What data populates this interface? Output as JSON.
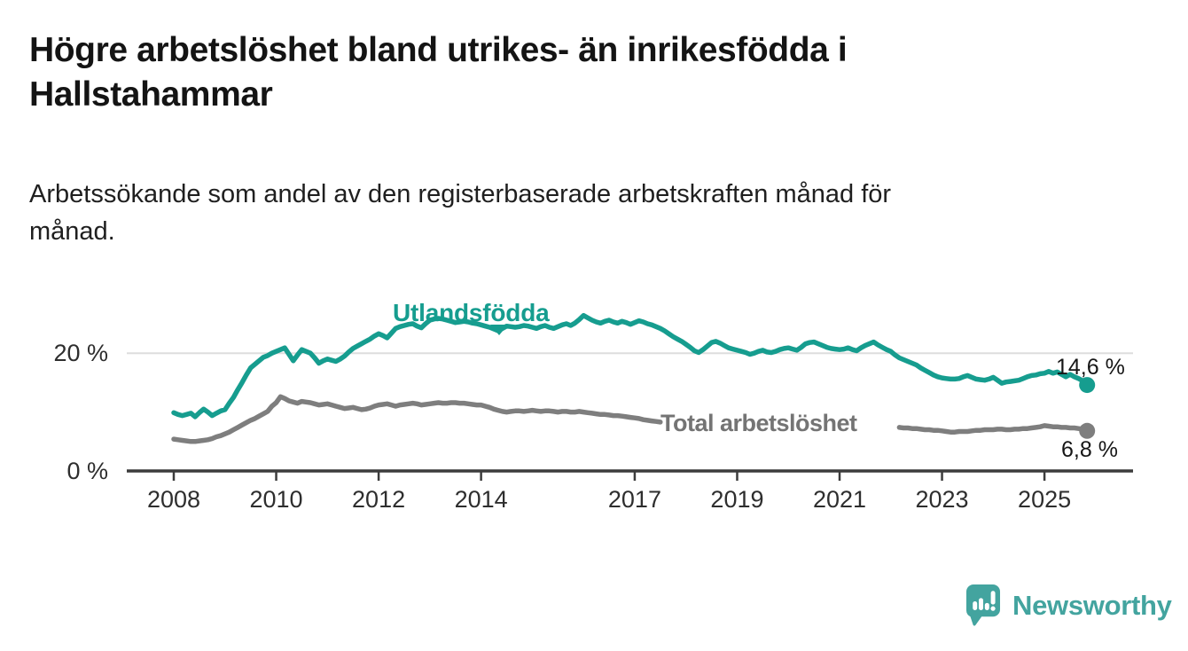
{
  "page": {
    "background": "#ffffff"
  },
  "header": {
    "title_lines": [
      "Högre arbetslöshet bland utrikes- än inrikesfödda i",
      "Hallstahammar"
    ],
    "subtitle_lines": [
      "Arbetssökande som andel av den registerbaserade arbetskraften månad för",
      "månad."
    ]
  },
  "chart": {
    "utlandsfodda_label": "Utlandsfödda",
    "total_label": "Total arbetslöshet",
    "teal_end_label": "14,6 %",
    "gray_end_label": "6,8 %"
  },
  "footer": {
    "brand": "Newsworthy"
  },
  "colors": {
    "teal": "#169d8f",
    "gray": "#7e7e7e",
    "logo_teal": "#43a49f",
    "axis": "#3c3c3c",
    "gridline": "#dddddd",
    "text": "#161616"
  },
  "chart_data": {
    "type": "line",
    "title": "Högre arbetslöshet bland utrikes- än inrikesfödda i Hallstahammar",
    "subtitle": "Arbetssökande som andel av den registerbaserade arbetskraften månad för månad.",
    "unit": "%",
    "frequency": "monthly",
    "x_start": {
      "year": 2008,
      "month": 1
    },
    "x_end": {
      "year": 2025,
      "month": 11
    },
    "ylim": [
      0,
      30
    ],
    "grid": "horizontal-at-20-only",
    "legend_position": "inline-labels",
    "y_ticks": [
      {
        "value": 20,
        "label": "20 %"
      },
      {
        "value": 0,
        "label": "0 %"
      }
    ],
    "x_ticks": [
      {
        "year": 2008,
        "label": "2008"
      },
      {
        "year": 2010,
        "label": "2010"
      },
      {
        "year": 2012,
        "label": "2012"
      },
      {
        "year": 2014,
        "label": "2014"
      },
      {
        "year": 2017,
        "label": "2017"
      },
      {
        "year": 2019,
        "label": "2019"
      },
      {
        "year": 2021,
        "label": "2021"
      },
      {
        "year": 2023,
        "label": "2023"
      },
      {
        "year": 2025,
        "label": "2025"
      }
    ],
    "series": [
      {
        "name": "Utlandsfödda",
        "color": "#169d8f",
        "last_value": 14.6,
        "end_value_label": "14,6 %",
        "values": [
          9.9,
          9.6,
          9.4,
          9.6,
          9.8,
          9.2,
          9.9,
          10.5,
          10.0,
          9.4,
          9.8,
          10.2,
          10.4,
          11.5,
          12.5,
          13.8,
          15.0,
          16.3,
          17.5,
          18.1,
          18.7,
          19.3,
          19.6,
          20.0,
          20.3,
          20.6,
          20.9,
          19.8,
          18.7,
          19.7,
          20.6,
          20.3,
          20.0,
          19.2,
          18.3,
          18.7,
          19.0,
          18.8,
          18.6,
          19.0,
          19.5,
          20.2,
          20.8,
          21.2,
          21.6,
          22.0,
          22.4,
          22.9,
          23.3,
          23.0,
          22.6,
          23.4,
          24.2,
          24.5,
          24.7,
          24.9,
          25.0,
          24.6,
          24.3,
          25.0,
          25.6,
          25.8,
          25.9,
          25.8,
          25.6,
          25.4,
          25.2,
          25.3,
          25.4,
          25.3,
          25.1,
          25.0,
          24.8,
          24.6,
          24.4,
          24.1,
          23.8,
          24.2,
          24.6,
          24.5,
          24.4,
          24.5,
          24.7,
          24.6,
          24.4,
          24.2,
          24.5,
          24.7,
          24.4,
          24.2,
          24.5,
          24.8,
          25.0,
          24.7,
          25.1,
          25.7,
          26.4,
          26.0,
          25.6,
          25.3,
          25.1,
          25.4,
          25.6,
          25.3,
          25.1,
          25.4,
          25.2,
          24.9,
          25.2,
          25.5,
          25.3,
          25.0,
          24.8,
          24.5,
          24.2,
          23.8,
          23.3,
          22.8,
          22.4,
          22.0,
          21.5,
          21.0,
          20.4,
          20.1,
          20.6,
          21.2,
          21.8,
          22.0,
          21.7,
          21.3,
          20.9,
          20.7,
          20.5,
          20.3,
          20.1,
          19.8,
          20.0,
          20.3,
          20.5,
          20.2,
          20.1,
          20.3,
          20.6,
          20.8,
          20.9,
          20.7,
          20.5,
          21.0,
          21.6,
          21.8,
          21.9,
          21.6,
          21.3,
          21.0,
          20.8,
          20.7,
          20.6,
          20.7,
          20.9,
          20.6,
          20.4,
          20.9,
          21.3,
          21.6,
          21.9,
          21.4,
          21.0,
          20.6,
          20.3,
          19.7,
          19.2,
          18.9,
          18.6,
          18.3,
          18.0,
          17.5,
          17.1,
          16.7,
          16.3,
          16.0,
          15.8,
          15.7,
          15.6,
          15.6,
          15.7,
          16.0,
          16.2,
          15.9,
          15.6,
          15.5,
          15.4,
          15.6,
          15.9,
          15.4,
          14.9,
          15.1,
          15.2,
          15.3,
          15.4,
          15.7,
          16.0,
          16.2,
          16.3,
          16.5,
          16.6,
          16.9,
          16.6,
          16.8,
          16.4,
          16.0,
          16.4,
          16.0,
          15.7,
          15.3,
          14.6
        ]
      },
      {
        "name": "Total arbetslöshet",
        "color": "#7e7e7e",
        "last_value": 6.8,
        "end_value_label": "6,8 %",
        "label_gap_indices": [
          114,
          170
        ],
        "values": [
          5.4,
          5.3,
          5.2,
          5.1,
          5.0,
          5.0,
          5.1,
          5.2,
          5.3,
          5.5,
          5.8,
          6.0,
          6.3,
          6.6,
          7.0,
          7.4,
          7.8,
          8.2,
          8.6,
          8.9,
          9.3,
          9.7,
          10.1,
          11.0,
          11.6,
          12.6,
          12.3,
          11.9,
          11.7,
          11.5,
          11.8,
          11.7,
          11.6,
          11.4,
          11.2,
          11.3,
          11.4,
          11.2,
          11.0,
          10.8,
          10.6,
          10.7,
          10.8,
          10.6,
          10.4,
          10.5,
          10.7,
          11.0,
          11.2,
          11.3,
          11.4,
          11.2,
          11.0,
          11.2,
          11.3,
          11.4,
          11.5,
          11.4,
          11.2,
          11.3,
          11.4,
          11.5,
          11.6,
          11.5,
          11.5,
          11.6,
          11.6,
          11.5,
          11.5,
          11.4,
          11.3,
          11.2,
          11.2,
          11.0,
          10.8,
          10.5,
          10.3,
          10.1,
          10.0,
          10.1,
          10.2,
          10.2,
          10.1,
          10.2,
          10.3,
          10.2,
          10.1,
          10.2,
          10.2,
          10.1,
          10.0,
          10.1,
          10.1,
          10.0,
          10.0,
          10.1,
          10.0,
          9.9,
          9.8,
          9.7,
          9.6,
          9.6,
          9.5,
          9.4,
          9.4,
          9.3,
          9.2,
          9.1,
          9.0,
          8.9,
          8.7,
          8.6,
          8.5,
          8.4,
          8.3,
          8.2,
          8.2,
          8.1,
          8.1,
          8.0,
          8.0,
          7.9,
          7.9,
          7.8,
          7.8,
          7.8,
          7.7,
          7.7,
          7.7,
          7.6,
          7.6,
          7.6,
          7.6,
          7.6,
          7.5,
          7.5,
          7.5,
          7.5,
          7.5,
          7.5,
          7.5,
          7.5,
          7.5,
          7.6,
          7.6,
          7.6,
          7.7,
          7.8,
          7.9,
          7.9,
          7.9,
          7.8,
          7.8,
          7.7,
          7.7,
          7.6,
          7.6,
          7.6,
          7.6,
          7.5,
          7.5,
          7.5,
          7.5,
          7.4,
          7.4,
          7.4,
          7.4,
          7.4,
          7.4,
          7.4,
          7.4,
          7.3,
          7.3,
          7.2,
          7.2,
          7.1,
          7.0,
          7.0,
          6.9,
          6.9,
          6.8,
          6.7,
          6.6,
          6.6,
          6.7,
          6.7,
          6.7,
          6.8,
          6.9,
          6.9,
          7.0,
          7.0,
          7.0,
          7.1,
          7.1,
          7.0,
          7.0,
          7.1,
          7.1,
          7.2,
          7.2,
          7.3,
          7.4,
          7.5,
          7.7,
          7.6,
          7.5,
          7.5,
          7.4,
          7.4,
          7.3,
          7.3,
          7.2,
          7.1,
          6.8
        ]
      }
    ]
  }
}
